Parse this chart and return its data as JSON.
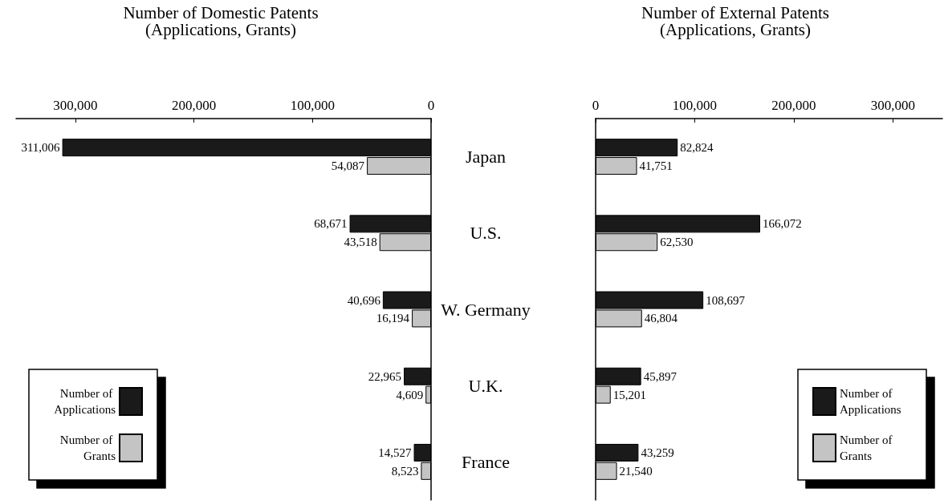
{
  "chart_data": [
    {
      "type": "bar",
      "orientation": "horizontal",
      "title": "Number of Domestic Patents",
      "subtitle": "(Applications, Grants)",
      "categories": [
        "Japan",
        "U.S.",
        "W. Germany",
        "U.K.",
        "France"
      ],
      "series": [
        {
          "name": "Number of Applications",
          "color": "#1a1a1a",
          "values": [
            311006,
            68671,
            40696,
            22965,
            14527
          ],
          "value_labels": [
            "311,006",
            "68,671",
            "40,696",
            "22,965",
            "14,527"
          ]
        },
        {
          "name": "Number of Grants",
          "color": "#c4c4c4",
          "values": [
            54087,
            43518,
            16194,
            4609,
            8523
          ],
          "value_labels": [
            "54,087",
            "43,518",
            "16,194",
            "4,609",
            "8,523"
          ]
        }
      ],
      "xlim": [
        350000,
        0
      ],
      "xticks": [
        {
          "value": 300000,
          "label": "300,000"
        },
        {
          "value": 200000,
          "label": "200,000"
        },
        {
          "value": 100000,
          "label": "100,000"
        },
        0
      ],
      "legend": "bottom left"
    },
    {
      "type": "bar",
      "orientation": "horizontal",
      "title": "Number of External Patents",
      "subtitle": "(Applications, Grants)",
      "categories": [
        "Japan",
        "U.S.",
        "W. Germany",
        "U.K.",
        "France"
      ],
      "series": [
        {
          "name": "Number of Applications",
          "color": "#1a1a1a",
          "values": [
            82824,
            166072,
            108697,
            45897,
            43259
          ],
          "value_labels": [
            "82,824",
            "166,072",
            "108,697",
            "45,897",
            "43,259"
          ]
        },
        {
          "name": "Number of Grants",
          "color": "#c4c4c4",
          "values": [
            41751,
            62530,
            46804,
            15201,
            21540
          ],
          "value_labels": [
            "41,751",
            "62,530",
            "46,804",
            "15,201",
            "21,540"
          ]
        }
      ],
      "xlim": [
        0,
        350000
      ],
      "xticks": [
        0,
        {
          "value": 100000,
          "label": "100,000"
        },
        {
          "value": 200000,
          "label": "200,000"
        },
        {
          "value": 300000,
          "label": "300,000"
        }
      ],
      "legend": "bottom right",
      "tick_labels": "x"
    }
  ]
}
